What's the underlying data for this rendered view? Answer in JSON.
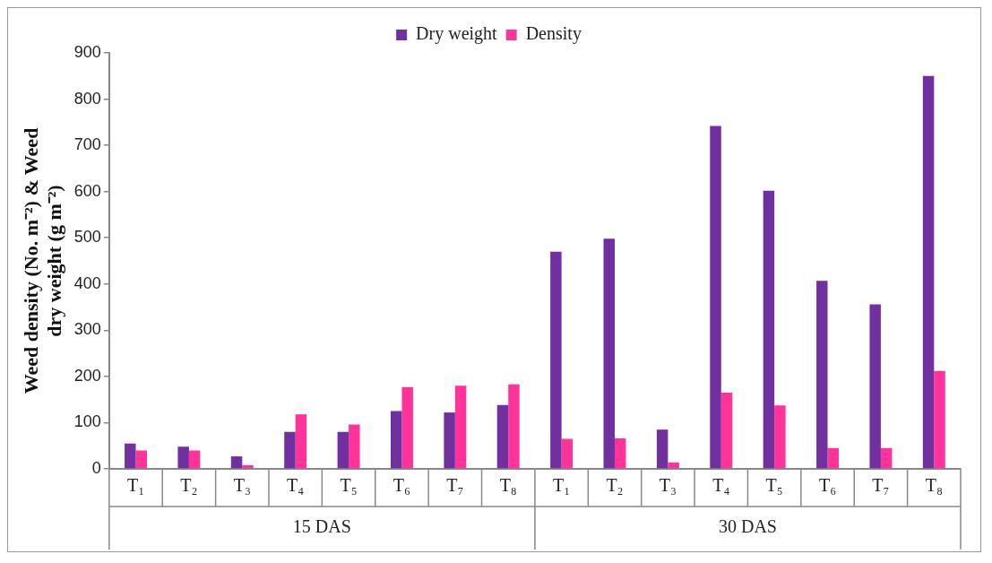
{
  "chart_data": {
    "type": "bar",
    "ylabel": "Weed density (No. m⁻²) & Weed dry weight (g m⁻²)",
    "categories": [
      "T₁",
      "T₂",
      "T₃",
      "T₄",
      "T₅",
      "T₆",
      "T₇",
      "T₈",
      "T₁",
      "T₂",
      "T₃",
      "T₄",
      "T₅",
      "T₆",
      "T₇",
      "T₈"
    ],
    "series": [
      {
        "name": "Dry weight",
        "color": "#7030a0",
        "values": [
          55,
          48,
          27,
          80,
          80,
          125,
          122,
          138,
          470,
          498,
          85,
          742,
          602,
          407,
          356,
          850
        ]
      },
      {
        "name": "Density",
        "color": "#ff3399",
        "values": [
          40,
          40,
          8,
          118,
          96,
          177,
          180,
          183,
          65,
          66,
          14,
          165,
          137,
          45,
          45,
          212
        ]
      }
    ],
    "annotations": [
      "15 DAS",
      "30 DAS"
    ],
    "ylim": [
      0,
      900
    ],
    "yticks": [
      0,
      100,
      200,
      300,
      400,
      500,
      600,
      700,
      800,
      900
    ],
    "grid": false,
    "legend": "top"
  }
}
